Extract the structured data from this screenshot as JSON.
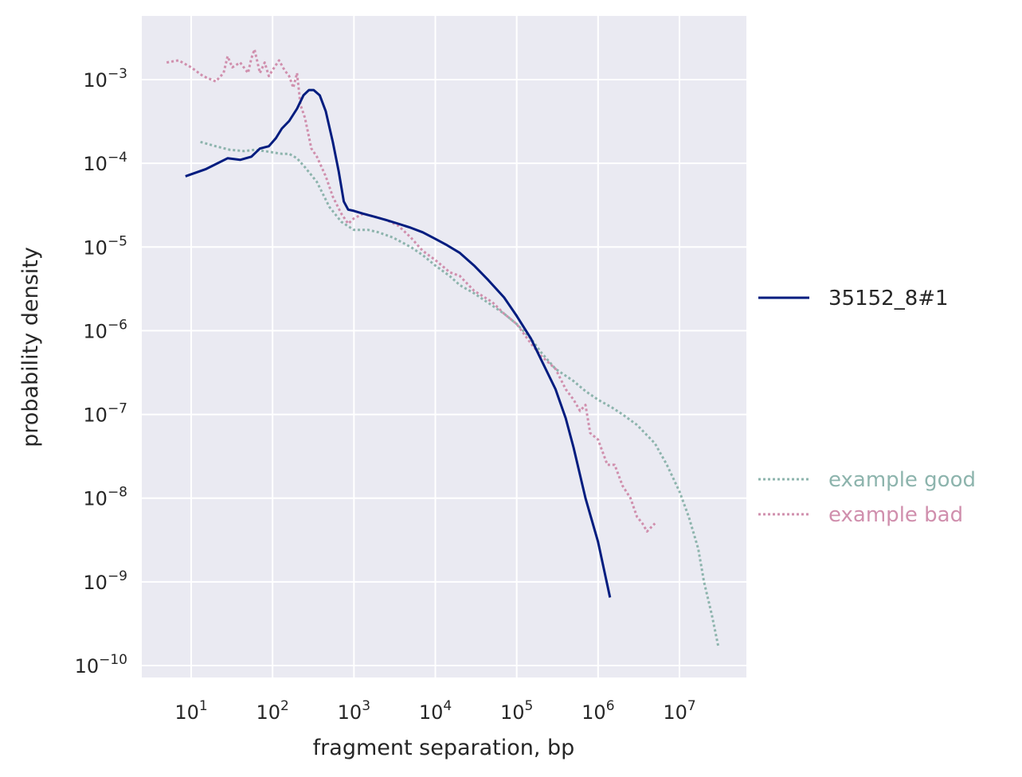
{
  "chart_data": {
    "type": "line",
    "title": "",
    "xlabel": "fragment separation, bp",
    "ylabel": "probability density",
    "x_scale": "log",
    "y_scale": "log",
    "xlim": [
      2.4,
      60000000
    ],
    "ylim": [
      6e-11,
      0.005
    ],
    "grid": true,
    "legend_position": "right",
    "x_ticks": [
      {
        "value": 10,
        "base": "10",
        "exp": "1"
      },
      {
        "value": 100,
        "base": "10",
        "exp": "2"
      },
      {
        "value": 1000,
        "base": "10",
        "exp": "3"
      },
      {
        "value": 10000,
        "base": "10",
        "exp": "4"
      },
      {
        "value": 100000,
        "base": "10",
        "exp": "5"
      },
      {
        "value": 1000000,
        "base": "10",
        "exp": "6"
      },
      {
        "value": 10000000,
        "base": "10",
        "exp": "7"
      }
    ],
    "y_ticks": [
      {
        "value": 0.001,
        "base": "10",
        "exp": "−3"
      },
      {
        "value": 0.0001,
        "base": "10",
        "exp": "−4"
      },
      {
        "value": 1e-05,
        "base": "10",
        "exp": "−5"
      },
      {
        "value": 1e-06,
        "base": "10",
        "exp": "−6"
      },
      {
        "value": 1e-07,
        "base": "10",
        "exp": "−7"
      },
      {
        "value": 1e-08,
        "base": "10",
        "exp": "−8"
      },
      {
        "value": 1e-09,
        "base": "10",
        "exp": "−9"
      },
      {
        "value": 1e-10,
        "base": "10",
        "exp": "−10"
      }
    ],
    "series": [
      {
        "name": "35152_8#1",
        "color": "#001c7f",
        "style": "solid",
        "x": [
          8.5,
          15,
          28,
          40,
          55,
          70,
          90,
          110,
          130,
          160,
          200,
          240,
          280,
          320,
          380,
          450,
          550,
          650,
          750,
          850,
          1000,
          1300,
          1800,
          2500,
          3500,
          5000,
          7000,
          10000,
          14000,
          20000,
          30000,
          45000,
          70000,
          100000,
          150000,
          200000,
          300000,
          400000,
          500000,
          700000,
          1000000,
          1400000
        ],
        "y": [
          7e-05,
          8.5e-05,
          0.000115,
          0.00011,
          0.00012,
          0.00015,
          0.00016,
          0.0002,
          0.00026,
          0.00032,
          0.00045,
          0.00065,
          0.00075,
          0.00075,
          0.00065,
          0.00042,
          0.00018,
          8e-05,
          3.5e-05,
          2.8e-05,
          2.7e-05,
          2.5e-05,
          2.3e-05,
          2.1e-05,
          1.9e-05,
          1.7e-05,
          1.5e-05,
          1.25e-05,
          1.05e-05,
          8.5e-06,
          6e-06,
          4e-06,
          2.5e-06,
          1.5e-06,
          8e-07,
          4.5e-07,
          2e-07,
          9e-08,
          4e-08,
          1e-08,
          3e-09,
          6.5e-10
        ]
      },
      {
        "name": "example good",
        "color": "#8db4ad",
        "style": "dotted",
        "x": [
          13,
          20,
          30,
          45,
          60,
          80,
          100,
          130,
          160,
          200,
          250,
          350,
          500,
          700,
          1000,
          1500,
          2000,
          3000,
          5000,
          7000,
          10000,
          15000,
          20000,
          30000,
          50000,
          70000,
          100000,
          150000,
          200000,
          300000,
          500000,
          700000,
          1000000,
          1500000,
          2000000,
          3000000,
          5000000,
          7000000,
          10000000,
          13000000,
          17000000,
          20000000,
          25000000,
          30000000
        ],
        "y": [
          0.00018,
          0.00016,
          0.000145,
          0.00014,
          0.000145,
          0.00014,
          0.000135,
          0.00013,
          0.00013,
          0.000115,
          9e-05,
          6e-05,
          3e-05,
          2e-05,
          1.6e-05,
          1.6e-05,
          1.5e-05,
          1.3e-05,
          1e-05,
          8e-06,
          6e-06,
          4.5e-06,
          3.5e-06,
          2.8e-06,
          2e-06,
          1.6e-06,
          1.2e-06,
          8e-07,
          5.5e-07,
          3.5e-07,
          2.5e-07,
          1.9e-07,
          1.5e-07,
          1.2e-07,
          1e-07,
          7.5e-08,
          4.5e-08,
          2.5e-08,
          1.2e-08,
          6e-09,
          2.5e-09,
          1e-09,
          4e-10,
          1.7e-10
        ]
      },
      {
        "name": "example bad",
        "color": "#d08fad",
        "style": "dotted",
        "x": [
          5,
          7,
          10,
          14,
          20,
          25,
          28,
          32,
          40,
          50,
          55,
          60,
          70,
          80,
          90,
          100,
          120,
          140,
          160,
          180,
          200,
          220,
          250,
          300,
          350,
          450,
          550,
          700,
          850,
          1000,
          1300,
          1800,
          2500,
          3500,
          5000,
          7000,
          10000,
          15000,
          20000,
          30000,
          50000,
          70000,
          100000,
          150000,
          200000,
          300000,
          400000,
          500000,
          600000,
          700000,
          800000,
          1000000,
          1300000,
          1600000,
          2000000,
          2500000,
          3000000,
          3500000,
          4000000,
          5000000
        ],
        "y": [
          0.0016,
          0.0017,
          0.0014,
          0.0011,
          0.00095,
          0.0012,
          0.0019,
          0.0014,
          0.0016,
          0.0012,
          0.0018,
          0.0023,
          0.0012,
          0.0016,
          0.0011,
          0.0013,
          0.0017,
          0.0013,
          0.0011,
          0.0008,
          0.0012,
          0.0005,
          0.00035,
          0.00015,
          0.00012,
          7e-05,
          4e-05,
          2.5e-05,
          1.9e-05,
          2.2e-05,
          2.5e-05,
          2.3e-05,
          2.1e-05,
          1.8e-05,
          1.3e-05,
          9e-06,
          7e-06,
          5e-06,
          4.5e-06,
          3e-06,
          2.2e-06,
          1.6e-06,
          1.2e-06,
          7e-07,
          5e-07,
          3.5e-07,
          2e-07,
          1.5e-07,
          1.1e-07,
          1.3e-07,
          6e-08,
          5e-08,
          2.5e-08,
          2.5e-08,
          1.4e-08,
          1e-08,
          6e-09,
          5e-09,
          4e-09,
          5e-09
        ]
      }
    ]
  }
}
